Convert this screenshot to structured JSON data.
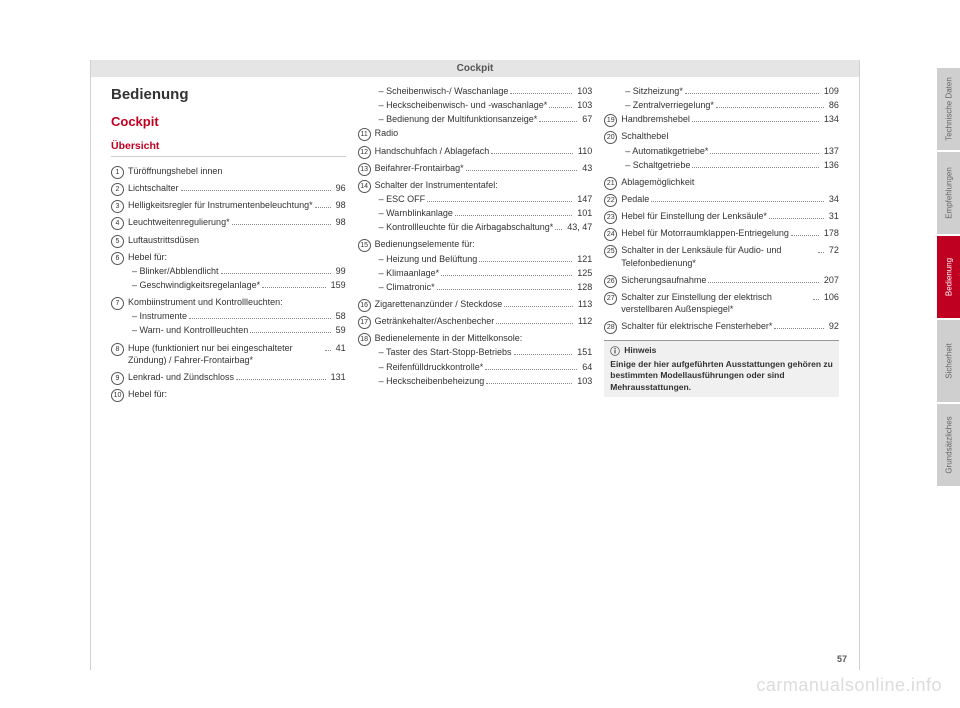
{
  "header": "Cockpit",
  "heading1": "Bedienung",
  "heading2": "Cockpit",
  "heading3": "Übersicht",
  "page_number": "57",
  "watermark": "carmanualsonline.info",
  "tabs": [
    {
      "label": "Technische Daten",
      "active": false
    },
    {
      "label": "Empfehlungen",
      "active": false
    },
    {
      "label": "Bedienung",
      "active": true
    },
    {
      "label": "Sicherheit",
      "active": false
    },
    {
      "label": "Grundsätzliches",
      "active": false
    }
  ],
  "note": {
    "title": "Hinweis",
    "body": "Einige der hier aufgeführten Ausstattungen gehören zu bestimmten Modellausführungen oder sind Mehrausstattungen."
  },
  "col1": [
    {
      "n": "1",
      "t": "Türöffnungshebel innen"
    },
    {
      "n": "2",
      "t": "Lichtschalter",
      "p": "96"
    },
    {
      "n": "3",
      "t": "Helligkeitsregler für Instrumenten­beleuchtung*",
      "p": "98"
    },
    {
      "n": "4",
      "t": "Leuchtweitenregulierung*",
      "p": "98"
    },
    {
      "n": "5",
      "t": "Luftaustrittsdüsen"
    },
    {
      "n": "6",
      "t": "Hebel für:",
      "subs": [
        {
          "t": "Blinker/Abblendlicht",
          "p": "99"
        },
        {
          "t": "Geschwindigkeitsregelanlage*",
          "p": "159"
        }
      ]
    },
    {
      "n": "7",
      "t": "Kombiinstrument und Kontroll­leuchten:",
      "subs": [
        {
          "t": "Instrumente",
          "p": "58"
        },
        {
          "t": "Warn- und Kontrollleuchten",
          "p": "59"
        }
      ]
    },
    {
      "n": "8",
      "t": "Hupe (funktioniert nur bei einge­schalteter Zündung) / Fahrer-Front­airbag*",
      "p": "41"
    },
    {
      "n": "9",
      "t": "Lenkrad- und Zündschloss",
      "p": "131"
    },
    {
      "n": "10",
      "t": "Hebel für:"
    }
  ],
  "col2_pre_subs": [
    {
      "t": "Scheibenwisch-/ Waschanlage",
      "p": "103"
    },
    {
      "t": "Heckscheibenwisch- und -wasch­anlage*",
      "p": "103"
    },
    {
      "t": "Bedienung der Multifunktionsan­zeige*",
      "p": "67"
    }
  ],
  "col2": [
    {
      "n": "11",
      "t": "Radio"
    },
    {
      "n": "12",
      "t": "Handschuhfach / Ablagefach",
      "p": "110"
    },
    {
      "n": "13",
      "t": "Beifahrer-Frontairbag*",
      "p": "43"
    },
    {
      "n": "14",
      "t": "Schalter der Instrumententafel:",
      "subs": [
        {
          "t": "ESC OFF",
          "p": "147"
        },
        {
          "t": "Warnblinkanlage",
          "p": "101"
        },
        {
          "t": "Kontrollleuchte für die Airbagab­schaltung*",
          "p": "43, 47"
        }
      ]
    },
    {
      "n": "15",
      "t": "Bedienungselemente für:",
      "subs": [
        {
          "t": "Heizung und Belüftung",
          "p": "121"
        },
        {
          "t": "Klimaanlage*",
          "p": "125"
        },
        {
          "t": "Climatronic*",
          "p": "128"
        }
      ]
    },
    {
      "n": "16",
      "t": "Zigarettenanzünder / Steckdose",
      "p": "113"
    },
    {
      "n": "17",
      "t": "Getränkehalter/Aschenbecher",
      "p": "112"
    },
    {
      "n": "18",
      "t": "Bedienelemente in der Mittelkonso­le:",
      "subs": [
        {
          "t": "Taster des Start-Stopp-Betriebs",
          "p": "151"
        },
        {
          "t": "Reifenfülldruckkontrolle*",
          "p": "64"
        },
        {
          "t": "Heckscheibenbeheizung",
          "p": "103"
        }
      ]
    }
  ],
  "col3_pre_subs": [
    {
      "t": "Sitzheizung*",
      "p": "109"
    },
    {
      "t": "Zentralverriegelung*",
      "p": "86"
    }
  ],
  "col3": [
    {
      "n": "19",
      "t": "Handbremshebel",
      "p": "134"
    },
    {
      "n": "20",
      "t": "Schalthebel",
      "subs": [
        {
          "t": "Automatikgetriebe*",
          "p": "137"
        },
        {
          "t": "Schaltgetriebe",
          "p": "136"
        }
      ]
    },
    {
      "n": "21",
      "t": "Ablagemöglichkeit"
    },
    {
      "n": "22",
      "t": "Pedale",
      "p": "34"
    },
    {
      "n": "23",
      "t": "Hebel für Einstellung der Lenksäu­le*",
      "p": "31"
    },
    {
      "n": "24",
      "t": "Hebel für Motorraumklappen-Ent­riegelung",
      "p": "178"
    },
    {
      "n": "25",
      "t": "Schalter in der Lenksäule für Audio- und Telefonbedienung*",
      "p": "72"
    },
    {
      "n": "26",
      "t": "Sicherungsaufnahme",
      "p": "207"
    },
    {
      "n": "27",
      "t": "Schalter zur Einstellung der elekt­risch verstellbaren Außenspiegel*",
      "p": "106"
    },
    {
      "n": "28",
      "t": "Schalter für elektrische Fensterhe­ber*",
      "p": "92"
    }
  ],
  "colors": {
    "accent": "#c00020",
    "tab_inactive": "#cfcfcf",
    "header_bg": "#e5e5e5",
    "note_bg": "#f0f0f0",
    "text": "#333333",
    "watermark": "#dcdcdc"
  }
}
